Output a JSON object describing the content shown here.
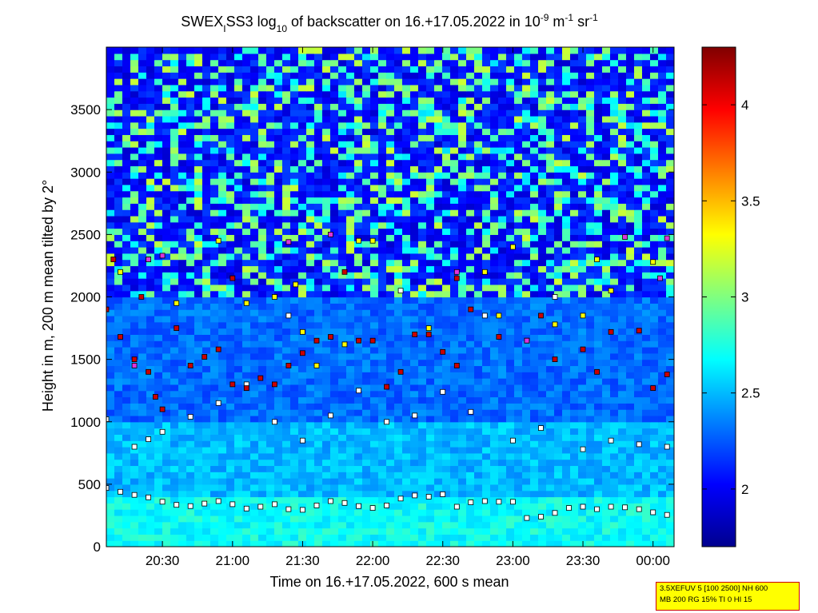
{
  "chart_data": [
    {
      "type": "heatmap",
      "title_parts": {
        "a": "SWEX",
        "a_sub": "I",
        "b": "SS3 log",
        "b_sub": "10",
        "c": " of backscatter on 16.+17.05.2022 in 10",
        "c_sup": "-9",
        "d": " m",
        "d_sup": "-1",
        "e": " sr",
        "e_sup": "-1"
      },
      "xlabel": "Time on 16.+17.05.2022, 600 s mean",
      "ylabel": "Height in m, 200 m mean tilted by 2°",
      "x_range_hours": [
        20.1,
        24.15
      ],
      "x_tick_labels": [
        "20:30",
        "21:00",
        "21:30",
        "22:00",
        "22:30",
        "23:00",
        "23:30",
        "00:00"
      ],
      "ylim": [
        0,
        4000
      ],
      "y_ticks": [
        0,
        500,
        1000,
        1500,
        2000,
        2500,
        3000,
        3500
      ],
      "colormap": "jet",
      "clim": [
        1.7,
        4.3
      ],
      "colorbar_ticks": [
        2,
        2.5,
        3,
        3.5,
        4
      ],
      "colorbar_tick_labels": [
        "2",
        "2.5",
        "3",
        "3.5",
        "4"
      ],
      "layers": [
        {
          "height_range": [
            0,
            400
          ],
          "value": 2.7
        },
        {
          "height_range": [
            400,
            1000
          ],
          "value": 2.5
        },
        {
          "height_range": [
            1000,
            2000
          ],
          "value": 2.3
        },
        {
          "height_range": [
            2000,
            4000
          ],
          "value": 1.9
        }
      ]
    },
    {
      "type": "scatter",
      "series": [
        {
          "marker_color": "#ffffff",
          "points": [
            [
              20.1,
              470
            ],
            [
              20.2,
              440
            ],
            [
              20.3,
              415
            ],
            [
              20.4,
              395
            ],
            [
              20.5,
              360
            ],
            [
              20.6,
              335
            ],
            [
              20.7,
              325
            ],
            [
              20.8,
              345
            ],
            [
              20.9,
              365
            ],
            [
              21.0,
              340
            ],
            [
              21.1,
              305
            ],
            [
              21.2,
              320
            ],
            [
              21.3,
              340
            ],
            [
              21.4,
              300
            ],
            [
              21.5,
              295
            ],
            [
              21.6,
              330
            ],
            [
              21.7,
              365
            ],
            [
              21.8,
              350
            ],
            [
              21.9,
              325
            ],
            [
              22.0,
              310
            ],
            [
              22.1,
              330
            ],
            [
              22.2,
              385
            ],
            [
              22.3,
              410
            ],
            [
              22.4,
              400
            ],
            [
              22.5,
              420
            ],
            [
              22.6,
              320
            ],
            [
              22.7,
              355
            ],
            [
              22.8,
              365
            ],
            [
              22.9,
              360
            ],
            [
              23.0,
              360
            ],
            [
              23.1,
              230
            ],
            [
              23.2,
              240
            ],
            [
              23.3,
              270
            ],
            [
              23.4,
              310
            ],
            [
              23.5,
              320
            ],
            [
              23.6,
              300
            ],
            [
              23.7,
              320
            ],
            [
              23.8,
              315
            ],
            [
              23.9,
              300
            ],
            [
              24.0,
              275
            ],
            [
              24.1,
              255
            ],
            [
              20.1,
              1020
            ],
            [
              20.3,
              800
            ],
            [
              20.4,
              860
            ],
            [
              20.5,
              920
            ],
            [
              20.7,
              1040
            ],
            [
              20.9,
              1150
            ],
            [
              21.1,
              1300
            ],
            [
              21.3,
              1000
            ],
            [
              21.5,
              850
            ],
            [
              21.7,
              1050
            ],
            [
              21.9,
              1250
            ],
            [
              22.1,
              1000
            ],
            [
              22.3,
              1050
            ],
            [
              22.5,
              1240
            ],
            [
              22.7,
              1080
            ],
            [
              23.0,
              850
            ],
            [
              23.2,
              950
            ],
            [
              23.5,
              780
            ],
            [
              23.7,
              850
            ],
            [
              23.9,
              820
            ],
            [
              24.1,
              800
            ],
            [
              21.4,
              1850
            ],
            [
              22.2,
              2050
            ],
            [
              22.8,
              1850
            ],
            [
              23.3,
              2000
            ]
          ]
        },
        {
          "marker_color": "#cc0000",
          "points": [
            [
              20.1,
              1900
            ],
            [
              20.2,
              1680
            ],
            [
              20.3,
              1500
            ],
            [
              20.4,
              1400
            ],
            [
              20.45,
              1200
            ],
            [
              20.5,
              1100
            ],
            [
              20.6,
              1750
            ],
            [
              20.7,
              1450
            ],
            [
              20.8,
              1520
            ],
            [
              20.9,
              1580
            ],
            [
              21.0,
              1300
            ],
            [
              21.1,
              1270
            ],
            [
              21.2,
              1350
            ],
            [
              21.3,
              1300
            ],
            [
              21.4,
              1450
            ],
            [
              21.5,
              1550
            ],
            [
              21.6,
              1650
            ],
            [
              21.7,
              1680
            ],
            [
              21.9,
              1650
            ],
            [
              22.0,
              1650
            ],
            [
              22.1,
              1280
            ],
            [
              22.2,
              1400
            ],
            [
              22.3,
              1700
            ],
            [
              22.4,
              1700
            ],
            [
              22.5,
              1560
            ],
            [
              22.6,
              1450
            ],
            [
              22.7,
              1900
            ],
            [
              22.9,
              1680
            ],
            [
              23.1,
              1650
            ],
            [
              23.3,
              1500
            ],
            [
              23.5,
              1580
            ],
            [
              23.6,
              1400
            ],
            [
              23.7,
              1720
            ],
            [
              23.9,
              1730
            ],
            [
              24.0,
              1270
            ],
            [
              24.1,
              1380
            ],
            [
              20.15,
              2300
            ],
            [
              20.35,
              2000
            ],
            [
              21.0,
              2150
            ],
            [
              21.8,
              2200
            ],
            [
              22.6,
              2150
            ],
            [
              23.2,
              1850
            ]
          ]
        },
        {
          "marker_color": "#ffff00",
          "points": [
            [
              20.2,
              2200
            ],
            [
              20.4,
              2300
            ],
            [
              20.6,
              1950
            ],
            [
              20.9,
              2450
            ],
            [
              21.1,
              1950
            ],
            [
              21.3,
              2000
            ],
            [
              21.45,
              2100
            ],
            [
              21.5,
              1720
            ],
            [
              21.6,
              1450
            ],
            [
              21.8,
              1620
            ],
            [
              21.9,
              2450
            ],
            [
              22.0,
              2450
            ],
            [
              22.4,
              1750
            ],
            [
              22.8,
              2200
            ],
            [
              22.9,
              1850
            ],
            [
              23.0,
              2400
            ],
            [
              23.3,
              1780
            ],
            [
              23.5,
              1850
            ],
            [
              23.6,
              2300
            ],
            [
              23.7,
              2050
            ],
            [
              24.0,
              2280
            ]
          ]
        },
        {
          "marker_color": "#dd33dd",
          "points": [
            [
              20.3,
              1450
            ],
            [
              20.4,
              2300
            ],
            [
              20.5,
              2330
            ],
            [
              21.4,
              2440
            ],
            [
              21.7,
              2500
            ],
            [
              22.6,
              2200
            ],
            [
              23.1,
              1650
            ],
            [
              23.8,
              2480
            ],
            [
              24.05,
              2150
            ],
            [
              24.1,
              2470
            ]
          ]
        }
      ]
    }
  ],
  "legend_box": {
    "line1": "3.5XEFUV 5 [100 2500] NH 600",
    "line2": "MB 200 RG 15% TI 0 HI 15"
  }
}
